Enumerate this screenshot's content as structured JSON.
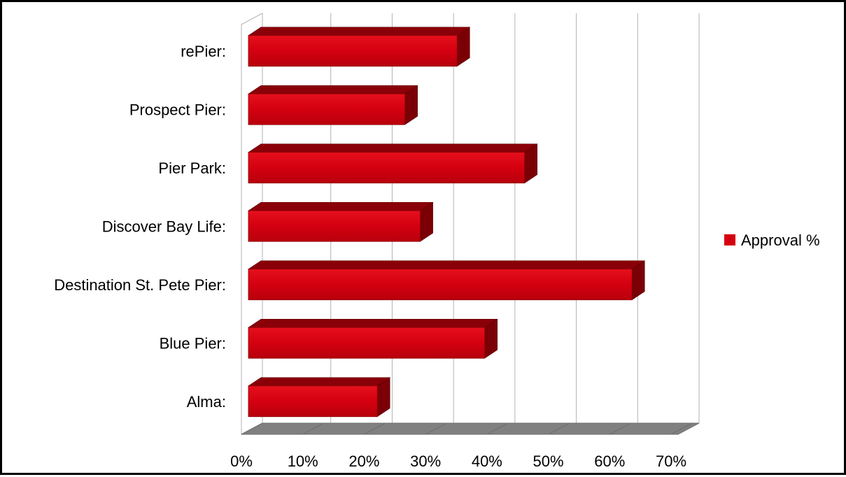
{
  "chart_data": {
    "type": "bar",
    "orientation": "horizontal",
    "style": "3d",
    "categories": [
      "rePier:",
      "Prospect Pier:",
      "Pier Park:",
      "Discover Bay Life:",
      "Destination St. Pete Pier:",
      "Blue Pier:",
      "Alma:"
    ],
    "series": [
      {
        "name": "Approval %",
        "color": "#d50010",
        "values": [
          0.34,
          0.255,
          0.45,
          0.28,
          0.625,
          0.385,
          0.21
        ]
      }
    ],
    "x_ticks": [
      "0%",
      "10%",
      "20%",
      "30%",
      "40%",
      "50%",
      "60%",
      "70%"
    ],
    "xlim": [
      0,
      0.7
    ],
    "grid": "vertical",
    "legend_position": "right",
    "title": "",
    "xlabel": "",
    "ylabel": ""
  }
}
